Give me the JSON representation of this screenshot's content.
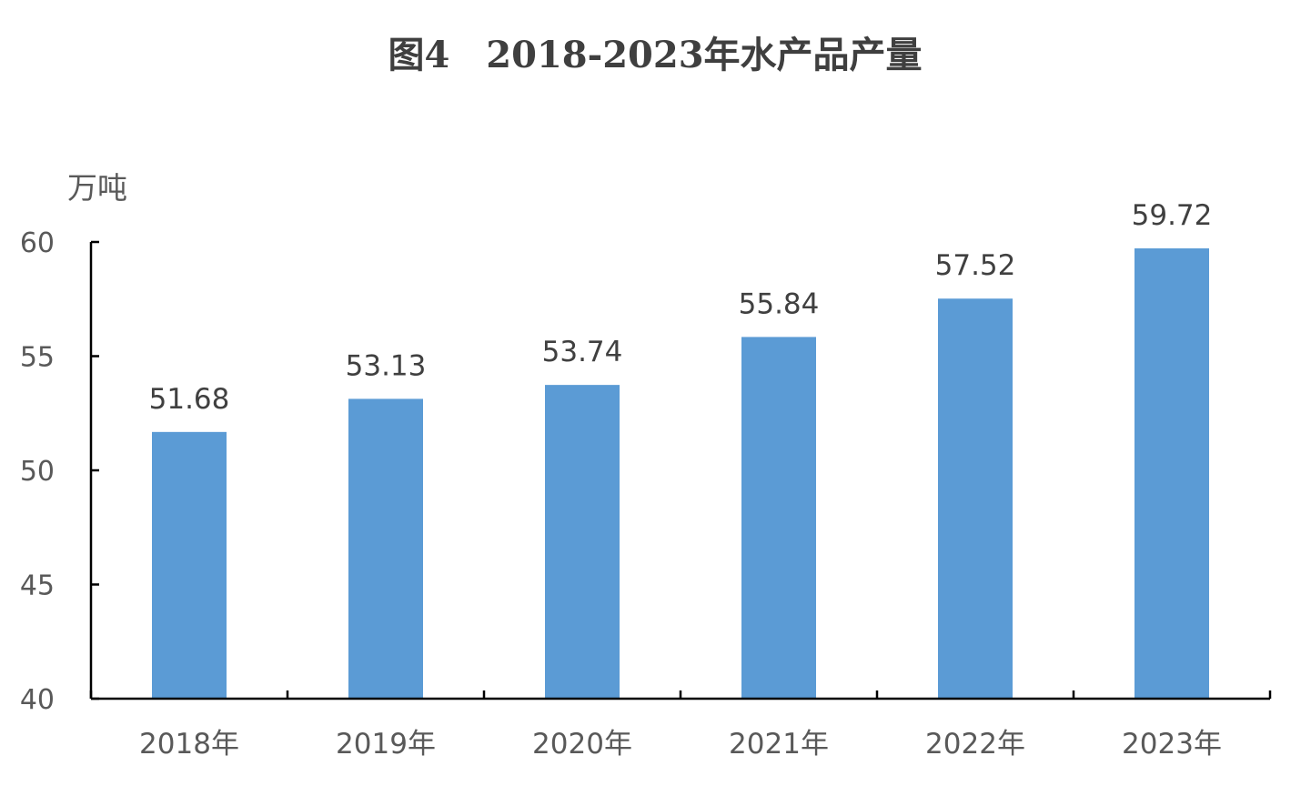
{
  "chart_data": {
    "type": "bar",
    "title": "图4　2018-2023年水产品产量",
    "ylabel": "万吨",
    "xlabel": "",
    "categories": [
      "2018年",
      "2019年",
      "2020年",
      "2021年",
      "2022年",
      "2023年"
    ],
    "values": [
      51.68,
      53.13,
      53.74,
      55.84,
      57.52,
      59.72
    ],
    "data_labels": [
      "51.68",
      "53.13",
      "53.74",
      "55.84",
      "57.52",
      "59.72"
    ],
    "ylim": [
      40,
      60
    ],
    "yticks": [
      40,
      45,
      50,
      55,
      60
    ],
    "ytick_labels": [
      "40",
      "45",
      "50",
      "55",
      "60"
    ],
    "grid": false,
    "legend": "none",
    "bar_color": "#5b9bd5"
  }
}
